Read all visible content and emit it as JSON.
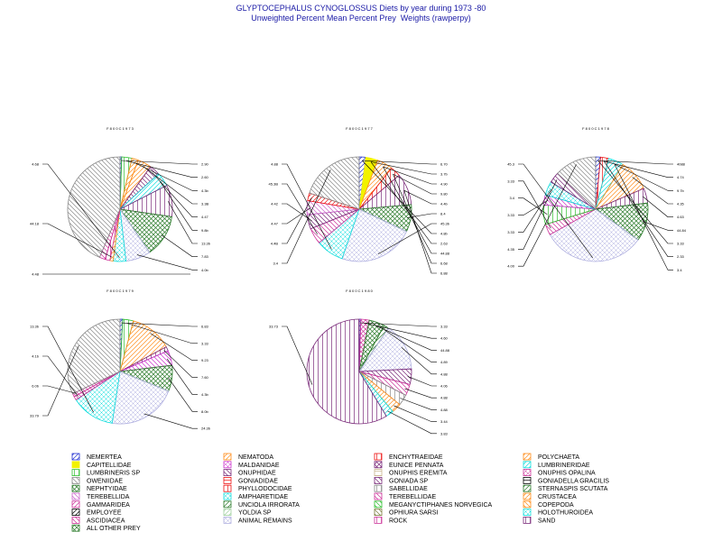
{
  "header": {
    "title": "GLYPTOCEPHALUS CYNOGLOSSUS Diets by year during 1973 -80",
    "subtitle": "Unweighted Percent Mean Percent Prey  Weights (rawperpy)"
  },
  "colors": {
    "title": "#1a1aa6",
    "NEMERTEA": "#1f2fd0",
    "CAPITELLIDAE": "#f2f200",
    "LUMBRINERIS SP": "#2fbf2f",
    "OWENIIDAE": "#8a8a8a",
    "NEPHTYIDAE": "#2a7a2a",
    "TEREBELLIDA": "#cc66cc",
    "GAMMARIDEA": "#cc3399",
    "EMPLOYEE": "#000000",
    "ASCIDIACEA": "#cc3399",
    "ALL OTHER PREY": "#2a7a2a",
    "NEMATODA": "#ff8c1a",
    "MALDANIDAE": "#cc33cc",
    "ONUPHIDAE": "#7a2a7a",
    "GONIADIDAE": "#ee1111",
    "PHYLLODOCIDAE": "#ee1111",
    "AMPHARETIDAE": "#11dddd",
    "UNCIOLA IRRORATA": "#2a7a2a",
    "YOLDIA SP": "#a0d0a0",
    "ANIMAL REMAINS": "#b0b0e0",
    "ENCHYTRAEIDAE": "#ee1111",
    "EUNICE PENNATA": "#7a2a7a",
    "ONUPHIS EREMITA": "#c8b48c",
    "GONIADA SP": "#7a2a7a",
    "SABELLIDAE": "#8a8a8a",
    "TEREBELLIDAE": "#cc3399",
    "MEGANYCTIPHANES NORVEGICA": "#2fbf2f",
    "OPHIURA SARSI": "#7a7a3a",
    "ROCK": "#cc3399",
    "POLYCHAETA": "#ff8c1a",
    "LUMBRINERIDAE": "#11dddd",
    "ONUPHIS OPALINA": "#cc3399",
    "GONIADELLA GRACILIS": "#000000",
    "STERNASPIS SCUTATA": "#2a7a2a",
    "CRUSTACEA": "#ff8c1a",
    "COPEPODA": "#ff8c1a",
    "HOLOTHUROIDEA": "#11dddd",
    "SAND": "#7a2a7a"
  },
  "chart_data": [
    {
      "type": "pie",
      "title": "F 8 0 0 C 1 9 7 3",
      "slices": [
        {
          "label": "NEMERTEA",
          "value": 0.5,
          "pattern": "diag-up"
        },
        {
          "label": "LUMBRINERIS SP",
          "value": 3.2,
          "pattern": "vert"
        },
        {
          "label": "NEMATODA",
          "value": 2.0,
          "pattern": "diag-up"
        },
        {
          "label": "POLYCHAETA",
          "value": 4.3,
          "pattern": "diag-up"
        },
        {
          "label": "GONIADA SP",
          "value": 3.3,
          "pattern": "diag-down"
        },
        {
          "label": "LUMBRINERIDAE",
          "value": 4.4,
          "pattern": "diag-up"
        },
        {
          "label": "SAND",
          "value": 9.9,
          "pattern": "vert"
        },
        {
          "label": "ALL OTHER PREY",
          "value": 13.3,
          "pattern": "cross"
        },
        {
          "label": "ANIMAL REMAINS",
          "value": 7.8,
          "pattern": "cross-diag"
        },
        {
          "label": "AMPHARETIDAE",
          "value": 4.0,
          "pattern": "cross-diag"
        },
        {
          "label": "CRUSTACEA",
          "value": 1.0,
          "pattern": "diag-up"
        },
        {
          "label": "ROCK",
          "value": 1.5,
          "pattern": "vert"
        },
        {
          "label": "TEREBELLIDAE",
          "value": 1.8,
          "pattern": "diag-down"
        },
        {
          "label": "OWENIIDAE",
          "value": 44.1,
          "pattern": "diag-down"
        }
      ],
      "value_labels": [
        "2.90",
        "2.60",
        "4.3b",
        "3.3B",
        "4.47",
        "9.8b",
        "13.3b",
        "7.83",
        "4.0b",
        "4.68",
        "44.18"
      ],
      "misc_label": "4.48"
    },
    {
      "type": "pie",
      "title": "F 8 0 0 C 1 9 7 7",
      "slices": [
        {
          "label": "NEMERTEA",
          "value": 2.0,
          "pattern": "diag-up"
        },
        {
          "label": "CAPITELLIDAE",
          "value": 3.7,
          "pattern": "solid"
        },
        {
          "label": "NEMATODA",
          "value": 4.9,
          "pattern": "diag-up"
        },
        {
          "label": "GONIADIDAE",
          "value": 3.2,
          "pattern": "vert"
        },
        {
          "label": "SAND",
          "value": 9.8,
          "pattern": "vert"
        },
        {
          "label": "ALL OTHER PREY",
          "value": 8.4,
          "pattern": "cross"
        },
        {
          "label": "ANIMAL REMAINS",
          "value": 23.3,
          "pattern": "cross-diag"
        },
        {
          "label": "AMPHARETIDAE",
          "value": 8.6,
          "pattern": "cross-diag"
        },
        {
          "label": "ROCK",
          "value": 5.0,
          "pattern": "diag-down"
        },
        {
          "label": "ONUPHIDAE",
          "value": 4.4,
          "pattern": "diag-down"
        },
        {
          "label": "TEREBELLIDA",
          "value": 4.3,
          "pattern": "diag-down"
        },
        {
          "label": "PHYLLODOCIDAE",
          "value": 2.4,
          "pattern": "diag-up"
        },
        {
          "label": "OWENIIDAE",
          "value": 20.0,
          "pattern": "diag-down"
        }
      ],
      "value_labels": [
        "6.70",
        "3.7b",
        "4.90",
        "9.80",
        "4.4b",
        "8.4",
        "45.3b",
        "4.88",
        "45.3B",
        "4.42",
        "4.47",
        "4.4B",
        "3.4",
        "4.8b",
        "2.63",
        "44.88",
        "6.68",
        "6.88"
      ]
    },
    {
      "type": "pie",
      "title": "F 8 0 0 C 1 9 7 8",
      "slices": [
        {
          "label": "NEMERTEA",
          "value": 1.5,
          "pattern": "diag-up"
        },
        {
          "label": "ENCHYTRAEIDAE",
          "value": 2.5,
          "pattern": "vert"
        },
        {
          "label": "LUMBRINERIDAE",
          "value": 4.7,
          "pattern": "diag-up"
        },
        {
          "label": "POLYCHAETA",
          "value": 9.8,
          "pattern": "diag-up"
        },
        {
          "label": "SAND",
          "value": 4.6,
          "pattern": "vert"
        },
        {
          "label": "ALL OTHER PREY",
          "value": 11.9,
          "pattern": "cross"
        },
        {
          "label": "ANIMAL REMAINS",
          "value": 31.9,
          "pattern": "cross-diag"
        },
        {
          "label": "TEREBELLIDAE",
          "value": 3.4,
          "pattern": "diag-down"
        },
        {
          "label": "LUMBRINERIS SP",
          "value": 6.0,
          "pattern": "vert"
        },
        {
          "label": "MALDANIDAE",
          "value": 3.1,
          "pattern": "diag-down"
        },
        {
          "label": "AMPHARETIDAE",
          "value": 4.3,
          "pattern": "cross-diag"
        },
        {
          "label": "ONUPHIDAE",
          "value": 3.3,
          "pattern": "diag-down"
        },
        {
          "label": "OWENIIDAE",
          "value": 13.0,
          "pattern": "diag-down"
        }
      ],
      "value_labels": [
        "4088",
        "4.74",
        "9.7b",
        "4.35",
        "4.63",
        "44.84",
        "45.3",
        "3.33",
        "3.4",
        "3.33",
        "3.33",
        "4.35",
        "4.00",
        "3.33",
        "2.33",
        "3.4"
      ]
    },
    {
      "type": "pie",
      "title": "F 8 0 0 C 1 9 7 9",
      "slices": [
        {
          "label": "NEMERTEA",
          "value": 0.8,
          "pattern": "diag-up"
        },
        {
          "label": "LUMBRINERIS SP",
          "value": 3.3,
          "pattern": "vert"
        },
        {
          "label": "POLYCHAETA",
          "value": 13.1,
          "pattern": "diag-up"
        },
        {
          "label": "SAND",
          "value": 1.3,
          "pattern": "vert"
        },
        {
          "label": "MALDANIDAE",
          "value": 4.6,
          "pattern": "diag-down"
        },
        {
          "label": "ALL OTHER PREY",
          "value": 8.0,
          "pattern": "cross"
        },
        {
          "label": "ANIMAL REMAINS",
          "value": 21.3,
          "pattern": "cross-diag"
        },
        {
          "label": "AMPHARETIDAE",
          "value": 13.5,
          "pattern": "cross-diag"
        },
        {
          "label": "ROCK",
          "value": 1.1,
          "pattern": "diag-down"
        },
        {
          "label": "TEREBELLIDAE",
          "value": 1.0,
          "pattern": "diag-down"
        },
        {
          "label": "OWENIIDAE",
          "value": 32.0,
          "pattern": "diag-down"
        }
      ],
      "value_labels": [
        "6.83",
        "3.33",
        "9.23",
        "7.60",
        "4.3b",
        "8.0b",
        "24.3b",
        "13.3b",
        "4.1b",
        "6.0b",
        "33.79"
      ]
    },
    {
      "type": "pie",
      "title": "F 8 0 0 C 1 9 8 0",
      "slices": [
        {
          "label": "NEMERTEA",
          "value": 0.5,
          "pattern": "diag-up"
        },
        {
          "label": "TEREBELLIDAE",
          "value": 2.6,
          "pattern": "cross"
        },
        {
          "label": "ALL OTHER PREY",
          "value": 4.8,
          "pattern": "cross"
        },
        {
          "label": "NEPHTYIDAE",
          "value": 1.5,
          "pattern": "diag-up"
        },
        {
          "label": "ANIMAL REMAINS",
          "value": 14.8,
          "pattern": "cross-diag"
        },
        {
          "label": "ONUPHIDAE",
          "value": 4.8,
          "pattern": "diag-down"
        },
        {
          "label": "ROCK",
          "value": 3.5,
          "pattern": "diag-down"
        },
        {
          "label": "SABELLIDAE",
          "value": 3.4,
          "pattern": "vert"
        },
        {
          "label": "POLYCHAETA",
          "value": 3.0,
          "pattern": "diag-up"
        },
        {
          "label": "LUMBRINERIDAE",
          "value": 2.4,
          "pattern": "diag-up"
        },
        {
          "label": "SAND",
          "value": 58.7,
          "pattern": "vert"
        }
      ],
      "value_labels": [
        "3.33",
        "4.60",
        "44.88",
        "4.89",
        "4.88",
        "4.06",
        "4.88",
        "4.88",
        "3.44",
        "3.83",
        "33.73"
      ]
    }
  ],
  "legend": {
    "items": [
      {
        "label": "NEMERTEA",
        "pattern": "diag-up"
      },
      {
        "label": "CAPITELLIDAE",
        "pattern": "solid"
      },
      {
        "label": "LUMBRINERIS SP",
        "pattern": "vert"
      },
      {
        "label": "OWENIIDAE",
        "pattern": "diag-down"
      },
      {
        "label": "NEPHTYIDAE",
        "pattern": "cross"
      },
      {
        "label": "TEREBELLIDA",
        "pattern": "diag-down"
      },
      {
        "label": "GAMMARIDEA",
        "pattern": "diag-up"
      },
      {
        "label": "EMPLOYEE",
        "pattern": "diag-up"
      },
      {
        "label": "ASCIDIACEA",
        "pattern": "diag-down"
      },
      {
        "label": "ALL OTHER PREY",
        "pattern": "cross"
      },
      {
        "label": "NEMATODA",
        "pattern": "diag-up"
      },
      {
        "label": "MALDANIDAE",
        "pattern": "cross-diag"
      },
      {
        "label": "ONUPHIDAE",
        "pattern": "diag-down"
      },
      {
        "label": "GONIADIDAE",
        "pattern": "hline"
      },
      {
        "label": "PHYLLODOCIDAE",
        "pattern": "vert"
      },
      {
        "label": "AMPHARETIDAE",
        "pattern": "cross-diag"
      },
      {
        "label": "UNCIOLA IRRORATA",
        "pattern": "diag-up"
      },
      {
        "label": "YOLDIA SP",
        "pattern": "diag-up"
      },
      {
        "label": "ANIMAL REMAINS",
        "pattern": "cross-diag"
      },
      {
        "label": "ENCHYTRAEIDAE",
        "pattern": "vert"
      },
      {
        "label": "EUNICE PENNATA",
        "pattern": "cross"
      },
      {
        "label": "ONUPHIS EREMITA",
        "pattern": "hline"
      },
      {
        "label": "GONIADA SP",
        "pattern": "diag-down"
      },
      {
        "label": "SABELLIDAE",
        "pattern": "vert"
      },
      {
        "label": "TEREBELLIDAE",
        "pattern": "diag-down"
      },
      {
        "label": "MEGANYCTIPHANES NORVEGICA",
        "pattern": "diag-down"
      },
      {
        "label": "OPHIURA SARSI",
        "pattern": "diag-down"
      },
      {
        "label": "ROCK",
        "pattern": "vert"
      },
      {
        "label": "POLYCHAETA",
        "pattern": "diag-up"
      },
      {
        "label": "LUMBRINERIDAE",
        "pattern": "diag-up"
      },
      {
        "label": "ONUPHIS OPALINA",
        "pattern": "cross-diag"
      },
      {
        "label": "GONIADELLA GRACILIS",
        "pattern": "hline"
      },
      {
        "label": "STERNASPIS SCUTATA",
        "pattern": "diag-up"
      },
      {
        "label": "CRUSTACEA",
        "pattern": "diag-up"
      },
      {
        "label": "COPEPODA",
        "pattern": "diag-down"
      },
      {
        "label": "HOLOTHUROIDEA",
        "pattern": "cross-diag"
      },
      {
        "label": "SAND",
        "pattern": "vert"
      }
    ]
  }
}
